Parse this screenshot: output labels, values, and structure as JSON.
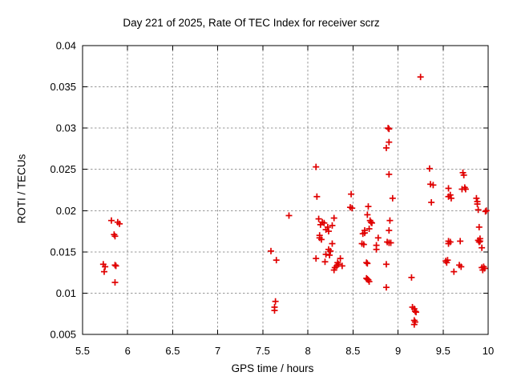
{
  "title": "Day 221 of 2025, Rate Of TEC Index for receiver scrz",
  "x_axis": {
    "label": "GPS time / hours"
  },
  "y_axis": {
    "label": "ROTI / TECUs"
  },
  "colors": {
    "marker": "#e00000",
    "grid": "#999999",
    "frame": "#000000",
    "background": "#ffffff"
  },
  "chart_data": {
    "type": "scatter",
    "title": "Day 221 of 2025, Rate Of TEC Index for receiver scrz",
    "xlabel": "GPS time / hours",
    "ylabel": "ROTI / TECUs",
    "xlim": [
      5.5,
      10
    ],
    "ylim": [
      0.005,
      0.04
    ],
    "grid": true,
    "legend": "none",
    "x_ticks": [
      "5.5",
      "6",
      "6.5",
      "7",
      "7.5",
      "8",
      "8.5",
      "9",
      "9.5",
      "10"
    ],
    "y_ticks": [
      "0.005",
      "0.01",
      "0.015",
      "0.02",
      "0.025",
      "0.03",
      "0.035",
      "0.04"
    ],
    "marker_style": "plus",
    "series": [
      {
        "name": "ROTI",
        "color": "#e00000",
        "points": [
          [
            5.82,
            0.0188
          ],
          [
            5.89,
            0.0186
          ],
          [
            5.91,
            0.0184
          ],
          [
            5.85,
            0.0171
          ],
          [
            5.86,
            0.0169
          ],
          [
            5.73,
            0.0135
          ],
          [
            5.75,
            0.0132
          ],
          [
            5.86,
            0.0134
          ],
          [
            5.87,
            0.0133
          ],
          [
            5.74,
            0.0126
          ],
          [
            5.86,
            0.0113
          ],
          [
            7.59,
            0.0151
          ],
          [
            7.65,
            0.014
          ],
          [
            7.64,
            0.009
          ],
          [
            7.63,
            0.0083
          ],
          [
            7.63,
            0.0079
          ],
          [
            7.79,
            0.0194
          ],
          [
            8.09,
            0.0253
          ],
          [
            8.1,
            0.0217
          ],
          [
            8.12,
            0.019
          ],
          [
            8.16,
            0.0186
          ],
          [
            8.18,
            0.0185
          ],
          [
            8.14,
            0.0183
          ],
          [
            8.29,
            0.0191
          ],
          [
            8.27,
            0.0182
          ],
          [
            8.22,
            0.018
          ],
          [
            8.2,
            0.0177
          ],
          [
            8.23,
            0.0175
          ],
          [
            8.13,
            0.017
          ],
          [
            8.13,
            0.0167
          ],
          [
            8.15,
            0.0165
          ],
          [
            8.27,
            0.016
          ],
          [
            8.23,
            0.0153
          ],
          [
            8.25,
            0.0151
          ],
          [
            8.2,
            0.0147
          ],
          [
            8.24,
            0.0146
          ],
          [
            8.09,
            0.0142
          ],
          [
            8.19,
            0.0138
          ],
          [
            8.36,
            0.0142
          ],
          [
            8.33,
            0.0137
          ],
          [
            8.34,
            0.0135
          ],
          [
            8.32,
            0.0133
          ],
          [
            8.3,
            0.0131
          ],
          [
            8.29,
            0.0128
          ],
          [
            8.38,
            0.0133
          ],
          [
            8.48,
            0.022
          ],
          [
            8.47,
            0.0204
          ],
          [
            8.49,
            0.0203
          ],
          [
            8.67,
            0.0205
          ],
          [
            8.66,
            0.0195
          ],
          [
            8.69,
            0.0188
          ],
          [
            8.7,
            0.0186
          ],
          [
            8.71,
            0.0185
          ],
          [
            8.68,
            0.0178
          ],
          [
            8.63,
            0.0176
          ],
          [
            8.63,
            0.0173
          ],
          [
            8.61,
            0.0172
          ],
          [
            8.6,
            0.016
          ],
          [
            8.62,
            0.0159
          ],
          [
            8.65,
            0.0137
          ],
          [
            8.66,
            0.0136
          ],
          [
            8.65,
            0.0118
          ],
          [
            8.66,
            0.0117
          ],
          [
            8.67,
            0.0116
          ],
          [
            8.68,
            0.0114
          ],
          [
            8.78,
            0.0167
          ],
          [
            8.76,
            0.0158
          ],
          [
            8.76,
            0.0153
          ],
          [
            8.89,
            0.03
          ],
          [
            8.9,
            0.0299
          ],
          [
            8.9,
            0.0283
          ],
          [
            8.87,
            0.0276
          ],
          [
            8.9,
            0.0244
          ],
          [
            8.94,
            0.0215
          ],
          [
            8.91,
            0.0188
          ],
          [
            8.9,
            0.0176
          ],
          [
            8.88,
            0.0162
          ],
          [
            8.9,
            0.0161
          ],
          [
            8.92,
            0.0161
          ],
          [
            8.87,
            0.0135
          ],
          [
            8.87,
            0.0107
          ],
          [
            9.15,
            0.0119
          ],
          [
            9.16,
            0.0083
          ],
          [
            9.18,
            0.0081
          ],
          [
            9.19,
            0.0078
          ],
          [
            9.2,
            0.0077
          ],
          [
            9.18,
            0.0067
          ],
          [
            9.19,
            0.0065
          ],
          [
            9.18,
            0.0062
          ],
          [
            9.25,
            0.0362
          ],
          [
            9.35,
            0.0251
          ],
          [
            9.36,
            0.0232
          ],
          [
            9.39,
            0.0231
          ],
          [
            9.37,
            0.021
          ],
          [
            9.56,
            0.0227
          ],
          [
            9.58,
            0.0219
          ],
          [
            9.56,
            0.0217
          ],
          [
            9.59,
            0.0215
          ],
          [
            9.56,
            0.0163
          ],
          [
            9.58,
            0.0162
          ],
          [
            9.56,
            0.016
          ],
          [
            9.53,
            0.0139
          ],
          [
            9.55,
            0.014
          ],
          [
            9.54,
            0.0137
          ],
          [
            9.62,
            0.0126
          ],
          [
            9.72,
            0.0246
          ],
          [
            9.73,
            0.0243
          ],
          [
            9.71,
            0.0226
          ],
          [
            9.74,
            0.0228
          ],
          [
            9.75,
            0.0226
          ],
          [
            9.69,
            0.0163
          ],
          [
            9.68,
            0.0134
          ],
          [
            9.7,
            0.0132
          ],
          [
            9.87,
            0.0215
          ],
          [
            9.88,
            0.0211
          ],
          [
            9.88,
            0.0208
          ],
          [
            9.89,
            0.0201
          ],
          [
            9.97,
            0.0199
          ],
          [
            9.98,
            0.02
          ],
          [
            9.9,
            0.018
          ],
          [
            9.89,
            0.0164
          ],
          [
            9.91,
            0.0166
          ],
          [
            9.91,
            0.0163
          ],
          [
            9.9,
            0.0162
          ],
          [
            9.93,
            0.0155
          ],
          [
            9.93,
            0.0131
          ],
          [
            9.95,
            0.0132
          ],
          [
            9.94,
            0.0128
          ],
          [
            9.96,
            0.013
          ]
        ]
      }
    ]
  }
}
